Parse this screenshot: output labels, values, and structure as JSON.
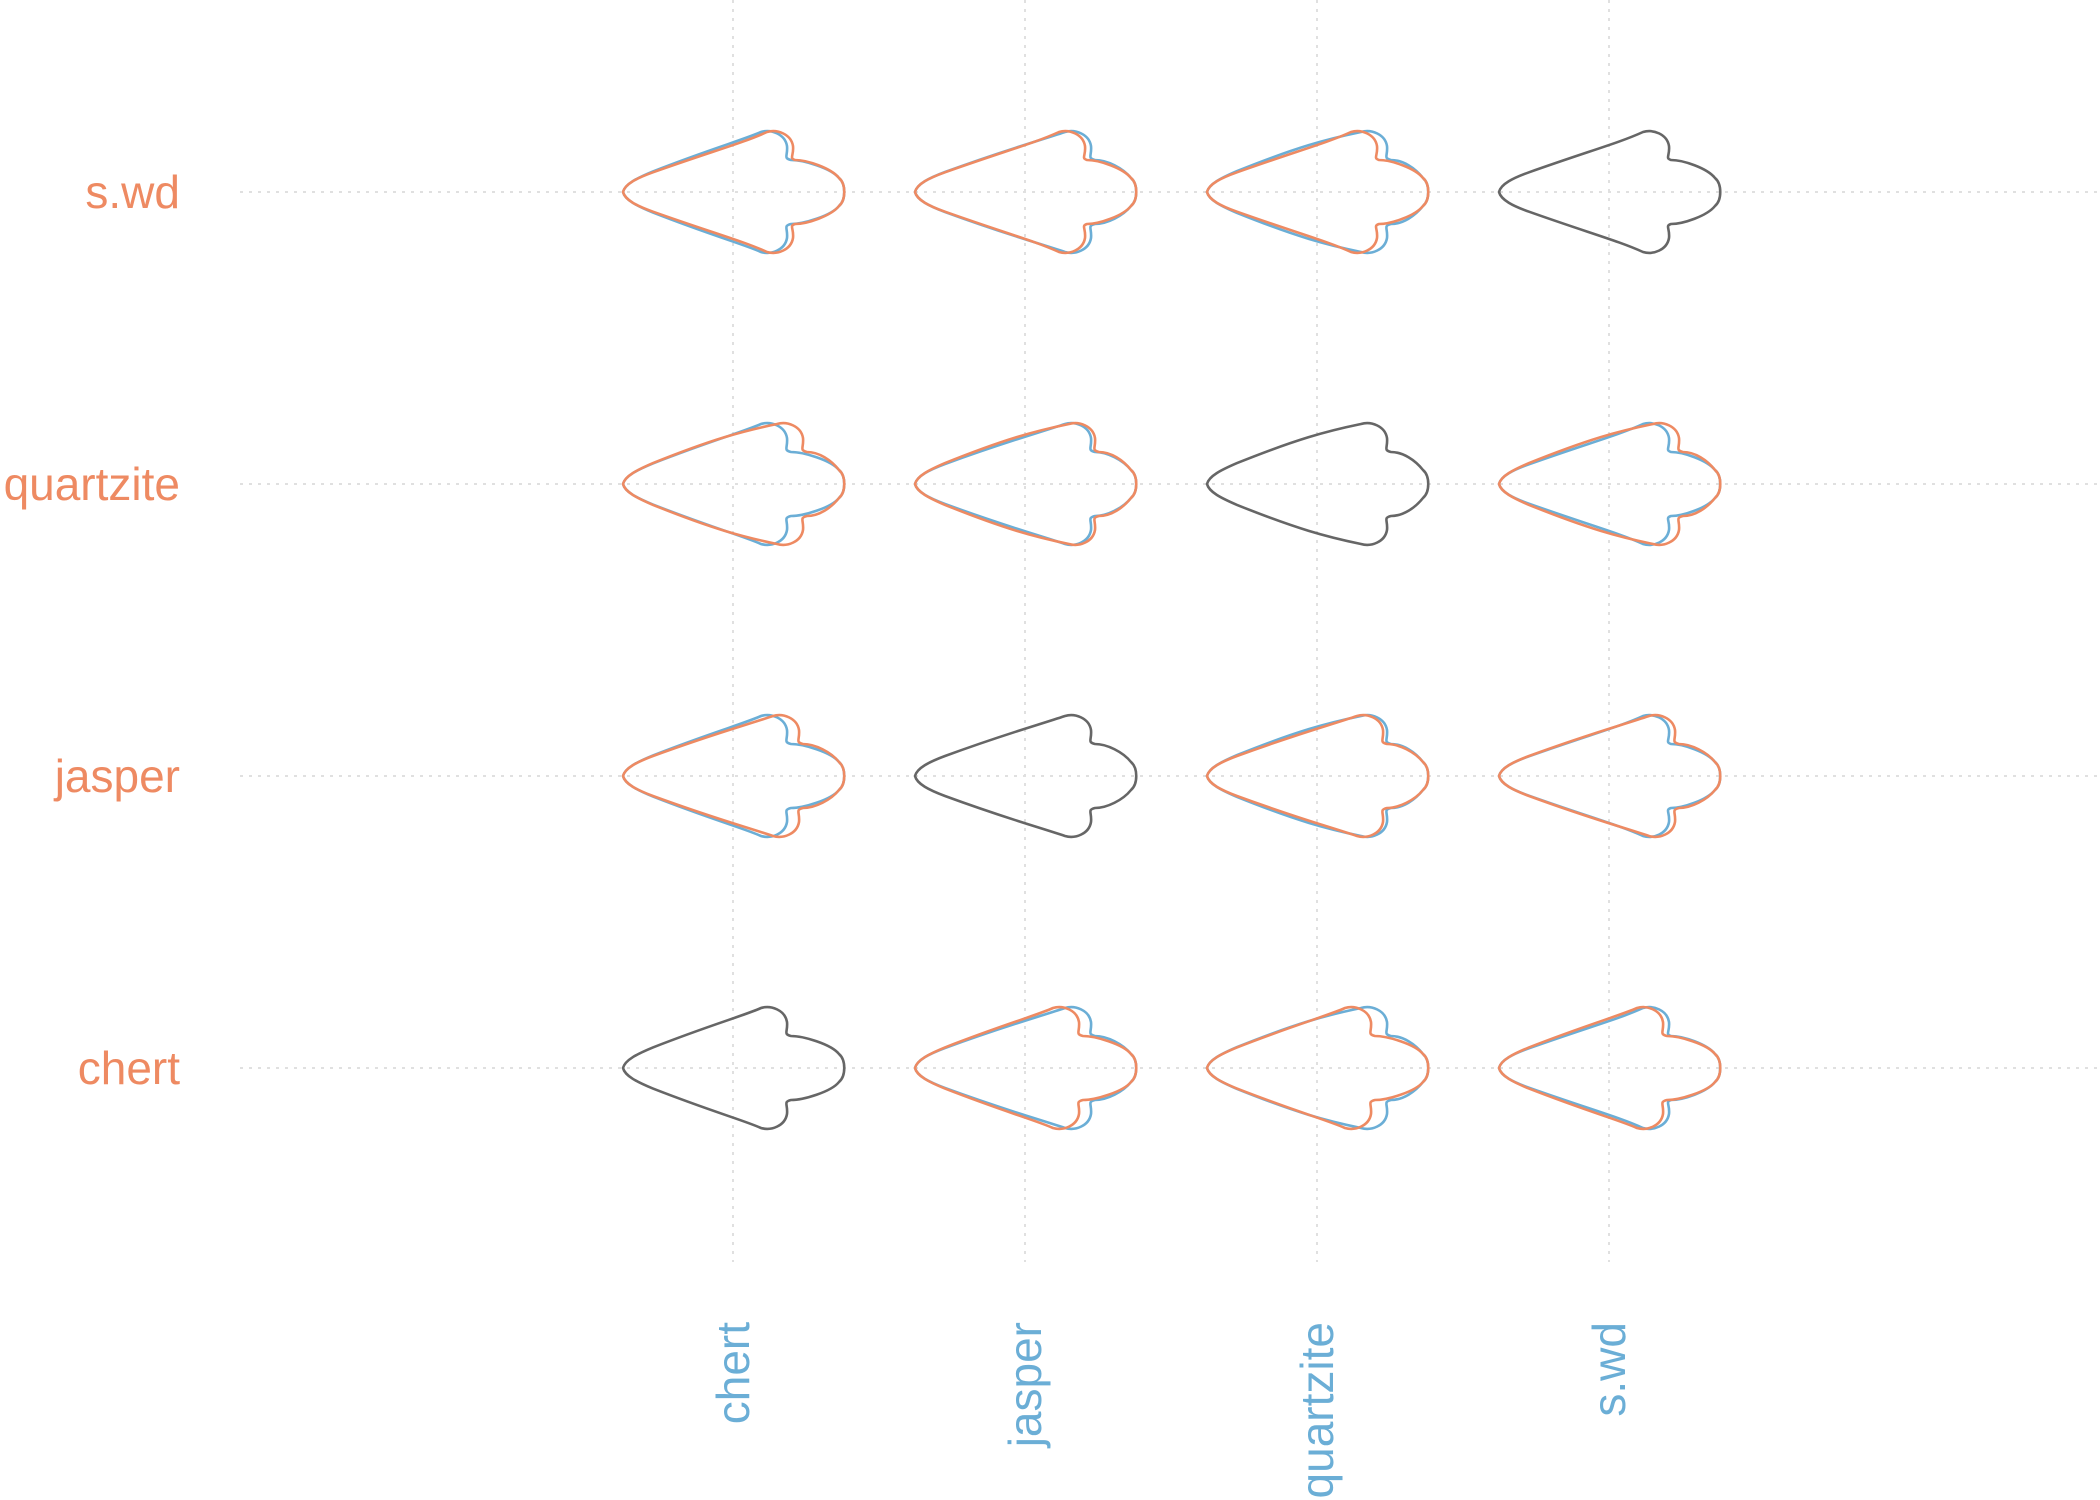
{
  "chart_data": {
    "type": "scatter",
    "title": "",
    "xlabel": "",
    "ylabel": "",
    "x_categories": [
      "chert",
      "jasper",
      "quartzite",
      "s.wd"
    ],
    "y_categories": [
      "chert",
      "jasper",
      "quartzite",
      "s.wd"
    ],
    "x_tick_color": "#6BAED6",
    "y_tick_color": "#EE8A62",
    "colors": {
      "column_overlay": "#6BAED6",
      "row_overlay": "#EE8A62",
      "diagonal": "#666666",
      "grid": "#e0e0e0"
    },
    "grid": true,
    "legend": "none"
  }
}
